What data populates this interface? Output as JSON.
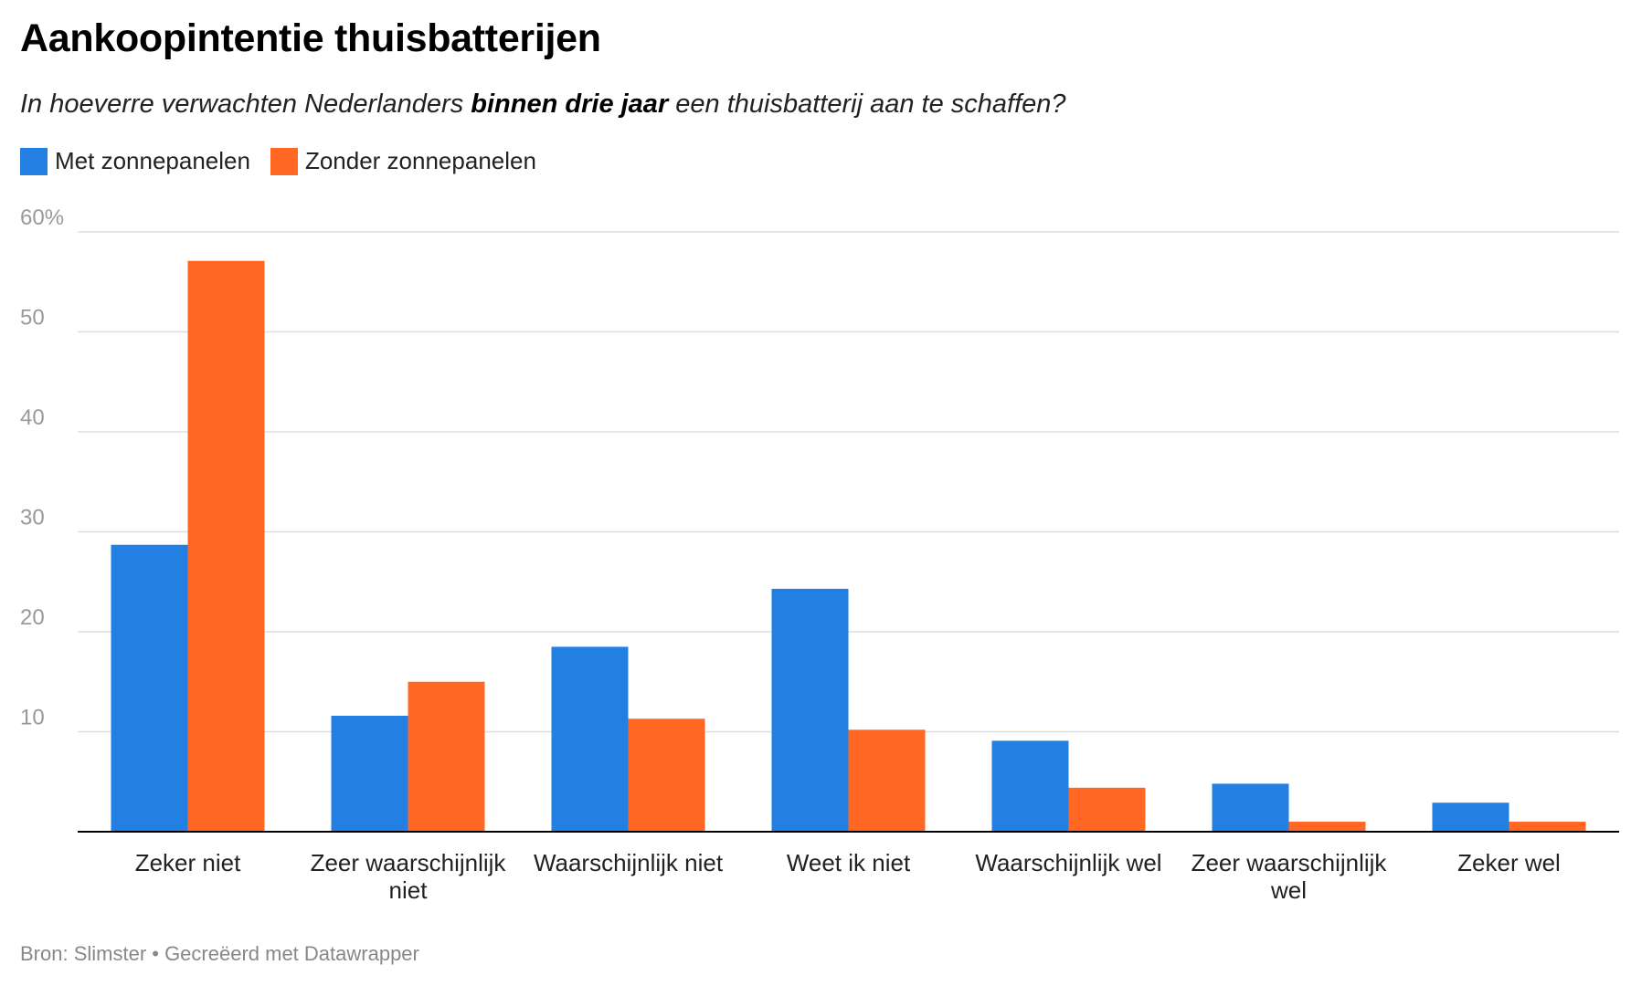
{
  "title": "Aankoopintentie thuisbatterijen",
  "subtitle": {
    "before": "In hoeverre verwachten Nederlanders ",
    "bold": "binnen drie jaar",
    "after": " een thuisbatterij aan te schaffen?"
  },
  "footer": "Bron: Slimster • Gecreëerd met Datawrapper",
  "colors": {
    "series1": "#247fe2",
    "series2": "#ff6723",
    "grid": "#dedede",
    "axis": "#000000",
    "tick": "#999999"
  },
  "chart_data": {
    "type": "bar",
    "categories": [
      [
        "Zeker niet"
      ],
      [
        "Zeer waarschijnlijk",
        "niet"
      ],
      [
        "Waarschijnlijk niet"
      ],
      [
        "Weet ik niet"
      ],
      [
        "Waarschijnlijk wel"
      ],
      [
        "Zeer waarschijnlijk",
        "wel"
      ],
      [
        "Zeker wel"
      ]
    ],
    "series": [
      {
        "name": "Met zonnepanelen",
        "values": [
          28.7,
          11.6,
          18.5,
          24.3,
          9.1,
          4.8,
          2.9
        ]
      },
      {
        "name": "Zonder zonnepanelen",
        "values": [
          57.1,
          15.0,
          11.3,
          10.2,
          4.4,
          1.0,
          1.0
        ]
      }
    ],
    "yticks": [
      {
        "value": 10,
        "label": "10"
      },
      {
        "value": 20,
        "label": "20"
      },
      {
        "value": 30,
        "label": "30"
      },
      {
        "value": 40,
        "label": "40"
      },
      {
        "value": 50,
        "label": "50"
      },
      {
        "value": 60,
        "label": "60%"
      }
    ],
    "ylim": [
      0,
      60
    ],
    "grid": true,
    "legend_position": "top-left"
  }
}
